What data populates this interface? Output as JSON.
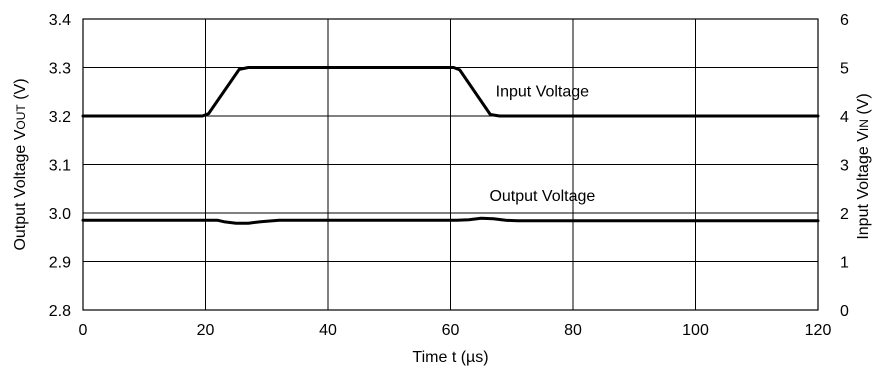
{
  "chart_data": {
    "type": "line",
    "x_axis": {
      "label_prefix": "Time t (",
      "label_mu": "µ",
      "label_suffix": "s)",
      "range": [
        0,
        120
      ],
      "ticks": [
        0,
        20,
        40,
        60,
        80,
        100,
        120
      ],
      "tick_labels": [
        "0",
        "20",
        "40",
        "60",
        "80",
        "100",
        "120"
      ]
    },
    "y_left": {
      "label_main": "Output Voltage V",
      "label_sub": "OUT",
      "label_unit": " (V)",
      "range": [
        2.8,
        3.4
      ],
      "ticks": [
        2.8,
        2.9,
        3.0,
        3.1,
        3.2,
        3.3,
        3.4
      ],
      "tick_labels": [
        "2.8",
        "2.9",
        "3.0",
        "3.1",
        "3.2",
        "3.3",
        "3.4"
      ]
    },
    "y_right": {
      "label_main": "Input Voltage V",
      "label_sub": "IN",
      "label_unit": " (V)",
      "range": [
        0,
        6
      ],
      "ticks": [
        0,
        1,
        2,
        3,
        4,
        5,
        6
      ],
      "tick_labels": [
        "0",
        "1",
        "2",
        "3",
        "4",
        "5",
        "6"
      ]
    },
    "grid": true,
    "annotations": [
      {
        "text": "Input Voltage",
        "x": 75,
        "y_right": 4.4
      },
      {
        "text": "Output Voltage",
        "x": 75,
        "y_left": 3.025
      }
    ],
    "series": [
      {
        "name": "Input Voltage",
        "axis": "right",
        "x": [
          0,
          19.5,
          20.5,
          25.5,
          27,
          59,
          60.5,
          61.5,
          66.5,
          68,
          120
        ],
        "y": [
          4.0,
          4.0,
          4.05,
          4.96,
          5.0,
          5.0,
          5.0,
          4.95,
          4.03,
          4.0,
          4.0
        ]
      },
      {
        "name": "Output Voltage",
        "axis": "left",
        "x": [
          0,
          21,
          22,
          23,
          25,
          27,
          29,
          32,
          60,
          61,
          63,
          65,
          67,
          69,
          71,
          73,
          120
        ],
        "y": [
          2.985,
          2.985,
          2.985,
          2.982,
          2.979,
          2.979,
          2.982,
          2.985,
          2.985,
          2.985,
          2.986,
          2.989,
          2.988,
          2.985,
          2.984,
          2.984,
          2.984
        ]
      }
    ]
  }
}
